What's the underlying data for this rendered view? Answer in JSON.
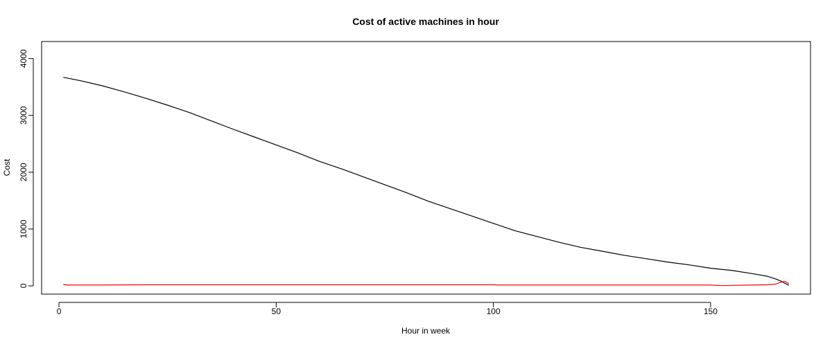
{
  "chart_data": {
    "type": "line",
    "title": "Cost of active machines in hour",
    "xlabel": "Hour in week",
    "ylabel": "Cost",
    "xlim": [
      -4,
      173
    ],
    "ylim": [
      -145,
      4300
    ],
    "xticks": [
      0,
      50,
      100,
      150
    ],
    "yticks": [
      0,
      1000,
      2000,
      3000,
      4000
    ],
    "grid": false,
    "series": [
      {
        "color": "#000000",
        "x": [
          1,
          5,
          10,
          15,
          20,
          25,
          30,
          35,
          40,
          45,
          50,
          55,
          60,
          65,
          70,
          75,
          80,
          85,
          90,
          95,
          100,
          105,
          110,
          115,
          120,
          125,
          130,
          135,
          140,
          145,
          150,
          155,
          160,
          163,
          165,
          166,
          167,
          168
        ],
        "y": [
          3670,
          3610,
          3520,
          3415,
          3300,
          3180,
          3050,
          2905,
          2760,
          2620,
          2480,
          2340,
          2190,
          2060,
          1920,
          1780,
          1640,
          1490,
          1360,
          1230,
          1100,
          970,
          870,
          770,
          680,
          610,
          540,
          480,
          420,
          370,
          310,
          270,
          210,
          170,
          120,
          90,
          50,
          10
        ]
      },
      {
        "color": "#ff0000",
        "x": [
          1,
          2,
          10,
          20,
          40,
          60,
          80,
          100,
          101,
          120,
          140,
          150,
          152,
          153,
          155,
          160,
          163,
          165,
          166,
          167,
          168
        ],
        "y": [
          25,
          15,
          15,
          20,
          20,
          20,
          20,
          20,
          15,
          15,
          15,
          15,
          5,
          5,
          10,
          15,
          20,
          30,
          60,
          80,
          40
        ]
      }
    ]
  }
}
